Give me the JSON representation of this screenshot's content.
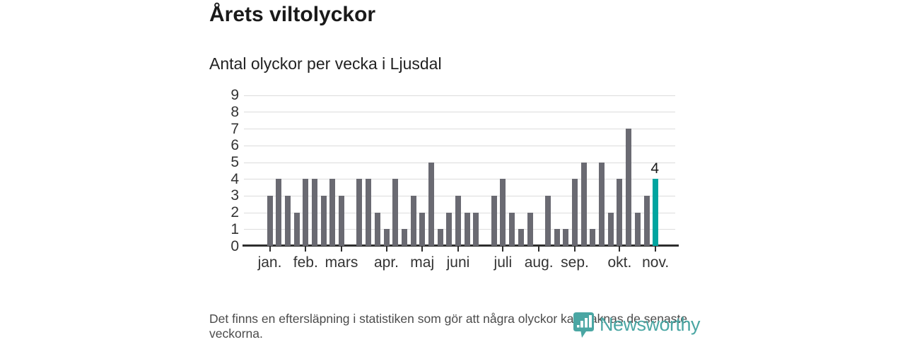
{
  "title": "Årets viltolyckor",
  "subtitle": "Antal olyckor per vecka i Ljusdal",
  "footer_note": "Det finns en eftersläpning i statistiken som gör att några olyckor kan saknas de senaste veckorna.",
  "logo": {
    "text": "Newsworthy",
    "icon": "newsworthy-banner-chart-icon"
  },
  "colors": {
    "bar": "#6a6a72",
    "highlight": "#00a5a0",
    "grid": "#dcdcdc",
    "axis": "#2e2e2e",
    "title_text": "#1a1a1a",
    "muted_text": "#4b4b4b",
    "logo_teal": "#4aa6a3"
  },
  "chart_data": {
    "type": "bar",
    "title": "Årets viltolyckor",
    "subtitle": "Antal olyckor per vecka i Ljusdal",
    "x_unit": "vecka (week of year)",
    "values": [
      3,
      4,
      3,
      2,
      4,
      4,
      3,
      4,
      3,
      0,
      4,
      4,
      2,
      1,
      4,
      1,
      3,
      2,
      5,
      1,
      2,
      3,
      2,
      2,
      0,
      3,
      4,
      2,
      1,
      2,
      0,
      3,
      1,
      1,
      4,
      5,
      1,
      5,
      2,
      4,
      7,
      2,
      3,
      4
    ],
    "month_ticks": [
      {
        "week": 1,
        "label": "jan."
      },
      {
        "week": 5,
        "label": "feb."
      },
      {
        "week": 9,
        "label": "mars"
      },
      {
        "week": 14,
        "label": "apr."
      },
      {
        "week": 18,
        "label": "maj"
      },
      {
        "week": 22,
        "label": "juni"
      },
      {
        "week": 27,
        "label": "juli"
      },
      {
        "week": 31,
        "label": "aug."
      },
      {
        "week": 35,
        "label": "sep."
      },
      {
        "week": 40,
        "label": "okt."
      },
      {
        "week": 44,
        "label": "nov."
      }
    ],
    "yticks": [
      0,
      1,
      2,
      3,
      4,
      5,
      6,
      7,
      8,
      9
    ],
    "ylim": [
      0,
      9
    ],
    "grid": true,
    "legend": "none",
    "highlight_last_bar": true,
    "last_bar_label": "4"
  }
}
